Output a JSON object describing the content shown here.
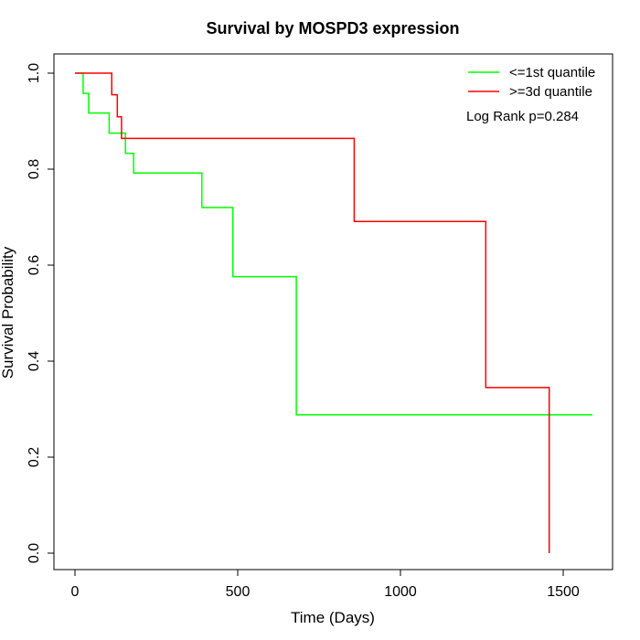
{
  "chart_data": {
    "type": "line",
    "title": "Survival by MOSPD3 expression",
    "xlabel": "Time (Days)",
    "ylabel": "Survival Probability",
    "xlim": [
      0,
      1600
    ],
    "ylim": [
      0,
      1
    ],
    "x_ticks": [
      "0",
      "500",
      "1000",
      "1500"
    ],
    "y_ticks": [
      "0.0",
      "0.2",
      "0.4",
      "0.6",
      "0.8",
      "1.0"
    ],
    "annotation": "Log Rank p=0.284",
    "legend_position": "top-right",
    "grid": false,
    "series": [
      {
        "name": "<=1st quantile",
        "color": "#00ff00",
        "x": [
          0,
          25,
          25,
          42,
          42,
          105,
          105,
          155,
          155,
          180,
          180,
          390,
          390,
          485,
          485,
          680,
          680,
          1590
        ],
        "y": [
          1.0,
          1.0,
          0.958,
          0.958,
          0.917,
          0.917,
          0.875,
          0.875,
          0.833,
          0.833,
          0.792,
          0.792,
          0.72,
          0.72,
          0.576,
          0.576,
          0.288,
          0.288
        ]
      },
      {
        "name": ">=3d quantile",
        "color": "#ff0000",
        "x": [
          0,
          113,
          113,
          130,
          130,
          143,
          143,
          858,
          858,
          1262,
          1262,
          1457,
          1457
        ],
        "y": [
          1.0,
          1.0,
          0.955,
          0.955,
          0.909,
          0.909,
          0.864,
          0.864,
          0.691,
          0.691,
          0.345,
          0.345,
          0.0
        ]
      }
    ]
  }
}
